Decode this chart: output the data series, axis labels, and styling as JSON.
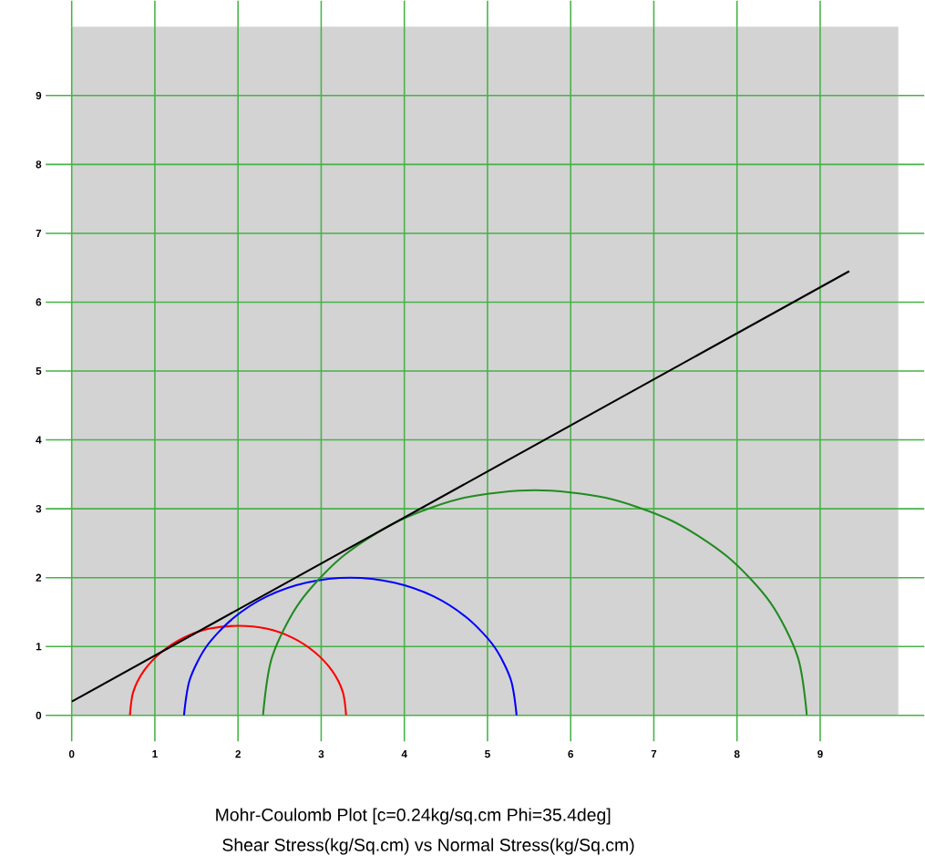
{
  "chart_data": {
    "type": "line",
    "title": "Mohr-Coulomb Plot [c=0.24kg/sq.cm   Phi=35.4deg]",
    "subtitle": "Shear Stress(kg/Sq.cm) vs Normal Stress(kg/Sq.cm)",
    "xlim": [
      0,
      9.94
    ],
    "ylim": [
      0,
      10
    ],
    "xticks": [
      0,
      1,
      2,
      3,
      4,
      5,
      6,
      7,
      8,
      9
    ],
    "yticks": [
      0,
      1,
      2,
      3,
      4,
      5,
      6,
      7,
      8,
      9
    ],
    "grid": true,
    "marker": "none",
    "line_style": "solid",
    "series": [
      {
        "color": "#ff0000",
        "x": [
          3.3,
          3.26,
          3.13,
          2.92,
          2.65,
          2.34,
          2.0,
          1.66,
          1.35,
          1.08,
          0.87,
          0.74,
          0.7
        ],
        "values": [
          0,
          0.34,
          0.65,
          0.92,
          1.13,
          1.26,
          1.3,
          1.26,
          1.13,
          0.92,
          0.65,
          0.34,
          0
        ]
      },
      {
        "color": "#0000ff",
        "x": [
          5.35,
          5.28,
          5.08,
          4.76,
          4.35,
          3.87,
          3.35,
          2.83,
          2.35,
          1.94,
          1.62,
          1.42,
          1.35
        ],
        "values": [
          0,
          0.52,
          1.0,
          1.41,
          1.73,
          1.93,
          2.0,
          1.93,
          1.73,
          1.41,
          1.0,
          0.52,
          0
        ]
      },
      {
        "color": "#228b22",
        "x": [
          8.84,
          8.73,
          8.4,
          7.88,
          7.21,
          6.42,
          5.57,
          4.72,
          3.94,
          3.26,
          2.74,
          2.41,
          2.3
        ],
        "values": [
          0,
          0.85,
          1.64,
          2.31,
          2.83,
          3.16,
          3.27,
          3.16,
          2.83,
          2.31,
          1.64,
          0.85,
          0
        ]
      },
      {
        "color": "#000000",
        "x": [
          0,
          9.35
        ],
        "values": [
          0.2,
          6.45
        ]
      }
    ]
  }
}
